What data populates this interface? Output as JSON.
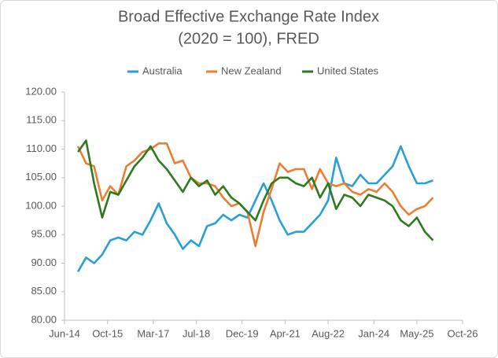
{
  "chart_data": {
    "type": "line",
    "title": [
      "Broad Effective Exchange Rate Index",
      "(2020 = 100), FRED"
    ],
    "x": [
      "2014-11",
      "2015-02",
      "2015-05",
      "2015-08",
      "2015-11",
      "2016-02",
      "2016-05",
      "2016-08",
      "2016-11",
      "2017-02",
      "2017-05",
      "2017-08",
      "2017-11",
      "2018-02",
      "2018-05",
      "2018-08",
      "2018-11",
      "2019-02",
      "2019-05",
      "2019-08",
      "2019-11",
      "2020-02",
      "2020-05",
      "2020-08",
      "2020-11",
      "2021-02",
      "2021-05",
      "2021-08",
      "2021-11",
      "2022-02",
      "2022-05",
      "2022-08",
      "2022-11",
      "2023-02",
      "2023-05",
      "2023-08",
      "2023-11",
      "2024-02",
      "2024-05",
      "2024-08",
      "2024-11",
      "2025-02",
      "2025-05",
      "2025-08",
      "2025-11"
    ],
    "series": [
      {
        "name": "Australia",
        "color": "#27a0d8",
        "values": [
          88.5,
          91,
          90,
          91.5,
          94,
          94.5,
          94,
          95.5,
          95,
          97.5,
          100.5,
          97,
          95,
          92.5,
          94,
          93,
          96.5,
          97,
          98.5,
          97.5,
          98.5,
          98,
          101,
          104,
          101,
          97.5,
          95,
          95.5,
          95.5,
          97,
          98.5,
          101,
          108.5,
          104,
          103.5,
          105.5,
          104,
          104,
          105.5,
          107,
          110.5,
          107,
          104,
          104,
          104.5
        ]
      },
      {
        "name": "New Zealand",
        "color": "#ed7d31",
        "values": [
          110.5,
          107.5,
          107,
          101,
          103.5,
          102,
          107,
          108,
          109.5,
          110,
          111,
          111,
          107.5,
          108,
          105,
          104,
          104,
          103.5,
          101.5,
          100,
          100.5,
          99,
          93,
          99,
          103,
          107.5,
          106,
          106.5,
          106.5,
          103,
          106.5,
          104,
          103.5,
          104,
          102.5,
          102,
          103,
          102.5,
          104,
          102.5,
          100,
          98.5,
          99.5,
          100,
          101.5
        ]
      },
      {
        "name": "United States",
        "color": "#2e7a1f",
        "values": [
          109.5,
          111.5,
          104,
          98,
          102.5,
          102,
          104.5,
          107,
          108.5,
          110.5,
          108,
          106.5,
          104.5,
          102.5,
          105,
          103.5,
          104.5,
          102,
          103.5,
          101.5,
          100.5,
          99,
          97.5,
          101,
          104,
          105,
          105,
          104,
          103.5,
          105,
          101.5,
          104,
          99.5,
          102,
          101.5,
          100,
          102,
          101.5,
          101,
          100,
          97.5,
          96.5,
          98,
          95.5,
          94
        ]
      }
    ],
    "xlim": [
      "2014-06",
      "2026-10"
    ],
    "xticks": [
      {
        "value": "2014-06",
        "label": "Jun-14"
      },
      {
        "value": "2015-10",
        "label": "Oct-15"
      },
      {
        "value": "2017-03",
        "label": "Mar-17"
      },
      {
        "value": "2018-07",
        "label": "Jul-18"
      },
      {
        "value": "2019-12",
        "label": "Dec-19"
      },
      {
        "value": "2021-04",
        "label": "Apr-21"
      },
      {
        "value": "2022-08",
        "label": "Aug-22"
      },
      {
        "value": "2024-01",
        "label": "Jan-24"
      },
      {
        "value": "2025-05",
        "label": "May-25"
      },
      {
        "value": "2026-10",
        "label": "Oct-26"
      }
    ],
    "ylim": [
      80,
      120
    ],
    "yticks": [
      {
        "value": 80,
        "label": "80.00"
      },
      {
        "value": 85,
        "label": "85.00"
      },
      {
        "value": 90,
        "label": "90.00"
      },
      {
        "value": 95,
        "label": "95.00"
      },
      {
        "value": 100,
        "label": "100.00"
      },
      {
        "value": 105,
        "label": "105.00"
      },
      {
        "value": 110,
        "label": "110.00"
      },
      {
        "value": 115,
        "label": "115.00"
      },
      {
        "value": 120,
        "label": "120.00"
      }
    ],
    "grid": false,
    "legend": "top"
  }
}
